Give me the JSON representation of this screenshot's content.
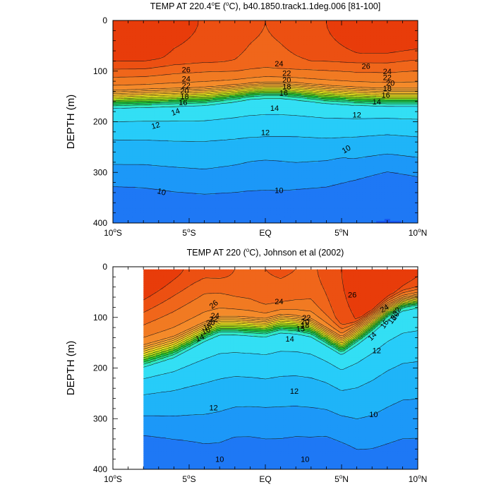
{
  "chart_data": [
    {
      "type": "contour",
      "title_prefix": "TEMP AT 220.4",
      "title_deg": "o",
      "title_mid": "E (",
      "title_unit_deg": "o",
      "title_suffix": "C), b40.1850.track1.1deg.006 [81-100]",
      "ylabel": "DEPTH (m)",
      "xlim": [
        -10,
        10
      ],
      "ylim": [
        400,
        0
      ],
      "data_xrange": [
        -10,
        10
      ],
      "xticks": [
        {
          "v": -10,
          "num": "10",
          "deg": "o",
          "hem": "S"
        },
        {
          "v": -5,
          "num": "5",
          "deg": "o",
          "hem": "S"
        },
        {
          "v": 0,
          "num": "EQ",
          "deg": "",
          "hem": ""
        },
        {
          "v": 5,
          "num": "5",
          "deg": "o",
          "hem": "N"
        },
        {
          "v": 10,
          "num": "10",
          "deg": "o",
          "hem": "N"
        }
      ],
      "yticks": [
        {
          "v": 0,
          "label": "0"
        },
        {
          "v": 100,
          "label": "100"
        },
        {
          "v": 200,
          "label": "200"
        },
        {
          "v": 300,
          "label": "300"
        },
        {
          "v": 400,
          "label": "400"
        }
      ],
      "profile": {
        "lat": [
          -10,
          -8,
          -6,
          -4,
          -2,
          -1,
          0,
          1,
          2,
          4,
          6,
          8,
          10
        ],
        "surf": [
          29.4,
          29.3,
          28.4,
          27.9,
          27.6,
          27.2,
          27.0,
          27.2,
          27.5,
          28.0,
          28.7,
          29.2,
          29.3
        ],
        "ml": [
          70,
          72,
          76,
          80,
          86,
          88,
          88,
          87,
          84,
          76,
          66,
          56,
          44
        ],
        "thermo": [
          152,
          150,
          148,
          146,
          140,
          136,
          134,
          134,
          136,
          142,
          146,
          148,
          148
        ],
        "tw": [
          32,
          32,
          32,
          32,
          30,
          28,
          28,
          28,
          30,
          32,
          32,
          32,
          32
        ],
        "tmid": [
          12.8,
          12.6,
          12.6,
          12.8,
          12.2,
          11.7,
          11.5,
          11.7,
          12.2,
          11.8,
          11.3,
          11.0,
          10.9
        ],
        "tdeep": [
          8.9,
          9.0,
          9.2,
          9.3,
          9.3,
          9.3,
          9.3,
          9.3,
          9.2,
          9.1,
          8.8,
          8.4,
          8.7
        ],
        "dref": 380
      },
      "contour_labels": [
        {
          "x": -5.2,
          "y": 97,
          "text": "26",
          "rot": 0
        },
        {
          "x": -5.2,
          "y": 115,
          "text": "24",
          "rot": 0
        },
        {
          "x": -5.2,
          "y": 128,
          "text": "22",
          "rot": 0
        },
        {
          "x": -5.3,
          "y": 139,
          "text": "20",
          "rot": 0
        },
        {
          "x": -5.3,
          "y": 150,
          "text": "18",
          "rot": 0
        },
        {
          "x": -5.4,
          "y": 162,
          "text": "16",
          "rot": 0
        },
        {
          "x": -5.9,
          "y": 180,
          "text": "14",
          "rot": -20
        },
        {
          "x": -7.2,
          "y": 207,
          "text": "12",
          "rot": -15
        },
        {
          "x": -6.8,
          "y": 338,
          "text": "10",
          "rot": 15
        },
        {
          "x": 0.9,
          "y": 85,
          "text": "24",
          "rot": 0
        },
        {
          "x": 1.4,
          "y": 104,
          "text": "22",
          "rot": 0
        },
        {
          "x": 1.4,
          "y": 117,
          "text": "20",
          "rot": 0
        },
        {
          "x": 1.4,
          "y": 130,
          "text": "18",
          "rot": 0
        },
        {
          "x": 1.2,
          "y": 143,
          "text": "16",
          "rot": 0
        },
        {
          "x": 0.6,
          "y": 173,
          "text": "14",
          "rot": 0
        },
        {
          "x": 0.0,
          "y": 221,
          "text": "12",
          "rot": 0
        },
        {
          "x": 0.9,
          "y": 335,
          "text": "10",
          "rot": 0
        },
        {
          "x": 6.6,
          "y": 90,
          "text": "26",
          "rot": 0
        },
        {
          "x": 8.0,
          "y": 100,
          "text": "24",
          "rot": 0
        },
        {
          "x": 8.0,
          "y": 112,
          "text": "22",
          "rot": 0
        },
        {
          "x": 8.2,
          "y": 123,
          "text": "20",
          "rot": 0
        },
        {
          "x": 8.0,
          "y": 134,
          "text": "18",
          "rot": 0
        },
        {
          "x": 7.9,
          "y": 147,
          "text": "16",
          "rot": 0
        },
        {
          "x": 7.3,
          "y": 160,
          "text": "14",
          "rot": 0
        },
        {
          "x": 6.0,
          "y": 186,
          "text": "12",
          "rot": 0
        },
        {
          "x": 5.3,
          "y": 254,
          "text": "10",
          "rot": -30
        }
      ]
    },
    {
      "type": "contour",
      "title_prefix": "TEMP AT 220 (",
      "title_unit_deg": "o",
      "title_suffix": "C), Johnson et al (2002)",
      "ylabel": "DEPTH (m)",
      "xlim": [
        -10,
        10
      ],
      "ylim": [
        400,
        0
      ],
      "data_xrange": [
        -8,
        10
      ],
      "data_top": 5,
      "xticks": [
        {
          "v": -10,
          "num": "10",
          "deg": "o",
          "hem": "S"
        },
        {
          "v": -5,
          "num": "5",
          "deg": "o",
          "hem": "S"
        },
        {
          "v": 0,
          "num": "EQ",
          "deg": "",
          "hem": ""
        },
        {
          "v": 5,
          "num": "5",
          "deg": "o",
          "hem": "N"
        },
        {
          "v": 10,
          "num": "10",
          "deg": "o",
          "hem": "N"
        }
      ],
      "yticks": [
        {
          "v": 0,
          "label": "0"
        },
        {
          "v": 100,
          "label": "100"
        },
        {
          "v": 200,
          "label": "200"
        },
        {
          "v": 300,
          "label": "300"
        },
        {
          "v": 400,
          "label": "400"
        }
      ],
      "profile": {
        "lat": [
          -8,
          -6,
          -4,
          -3,
          -2,
          -1,
          0,
          1,
          2,
          3,
          4,
          5,
          6,
          7,
          8,
          9,
          10
        ],
        "surf": [
          29.3,
          28.3,
          27.4,
          27.3,
          27.0,
          26.8,
          27.0,
          27.1,
          27.0,
          26.8,
          27.3,
          28.0,
          28.8,
          29.2,
          29.0,
          28.6,
          28.2
        ],
        "ml": [
          52,
          40,
          30,
          36,
          52,
          62,
          70,
          64,
          60,
          62,
          86,
          112,
          104,
          84,
          58,
          42,
          36
        ],
        "thermo": [
          172,
          154,
          124,
          112,
          112,
          114,
          116,
          108,
          110,
          116,
          134,
          152,
          132,
          110,
          86,
          70,
          64
        ],
        "tw": [
          40,
          38,
          34,
          32,
          32,
          32,
          32,
          32,
          32,
          32,
          32,
          32,
          32,
          30,
          26,
          22,
          22
        ],
        "tmid": [
          12.6,
          12.8,
          12.7,
          12.6,
          12.5,
          12.3,
          12.0,
          12.2,
          12.4,
          12.4,
          12.4,
          12.2,
          12.5,
          12.6,
          12.4,
          12.2,
          12.2
        ],
        "tdeep": [
          8.9,
          9.2,
          9.5,
          9.5,
          9.3,
          9.3,
          9.4,
          9.4,
          9.3,
          9.3,
          9.2,
          9.4,
          9.7,
          9.7,
          9.6,
          9.5,
          9.5
        ],
        "dref": 380
      },
      "contour_labels": [
        {
          "x": -3.4,
          "y": 74,
          "text": "26",
          "rot": -40
        },
        {
          "x": -3.3,
          "y": 96,
          "text": "24",
          "rot": 0
        },
        {
          "x": -3.4,
          "y": 103,
          "text": "22",
          "rot": 0
        },
        {
          "x": -3.6,
          "y": 110,
          "text": "20",
          "rot": -10
        },
        {
          "x": -3.8,
          "y": 118,
          "text": "18",
          "rot": -15
        },
        {
          "x": -3.9,
          "y": 126,
          "text": "16",
          "rot": -20
        },
        {
          "x": -4.3,
          "y": 140,
          "text": "14",
          "rot": -20
        },
        {
          "x": -3.4,
          "y": 278,
          "text": "12",
          "rot": 0
        },
        {
          "x": -3.0,
          "y": 380,
          "text": "10",
          "rot": 0
        },
        {
          "x": 0.9,
          "y": 68,
          "text": "24",
          "rot": 0
        },
        {
          "x": 2.7,
          "y": 100,
          "text": "22",
          "rot": 0
        },
        {
          "x": 2.6,
          "y": 108,
          "text": "20",
          "rot": 0
        },
        {
          "x": 2.6,
          "y": 115,
          "text": "18",
          "rot": 0
        },
        {
          "x": 2.3,
          "y": 122,
          "text": "15",
          "rot": 0
        },
        {
          "x": 1.6,
          "y": 142,
          "text": "14",
          "rot": 0
        },
        {
          "x": 1.9,
          "y": 245,
          "text": "12",
          "rot": 0
        },
        {
          "x": 2.6,
          "y": 380,
          "text": "10",
          "rot": 0
        },
        {
          "x": 5.7,
          "y": 55,
          "text": "26",
          "rot": 0
        },
        {
          "x": 7.8,
          "y": 82,
          "text": "24",
          "rot": -30
        },
        {
          "x": 8.6,
          "y": 88,
          "text": "22",
          "rot": -55
        },
        {
          "x": 8.5,
          "y": 97,
          "text": "20",
          "rot": -55
        },
        {
          "x": 8.3,
          "y": 104,
          "text": "18",
          "rot": -55
        },
        {
          "x": 7.8,
          "y": 113,
          "text": "16",
          "rot": -55
        },
        {
          "x": 7.0,
          "y": 137,
          "text": "14",
          "rot": -45
        },
        {
          "x": 7.3,
          "y": 165,
          "text": "12",
          "rot": 0
        },
        {
          "x": 7.1,
          "y": 291,
          "text": "10",
          "rot": 0
        }
      ]
    }
  ]
}
